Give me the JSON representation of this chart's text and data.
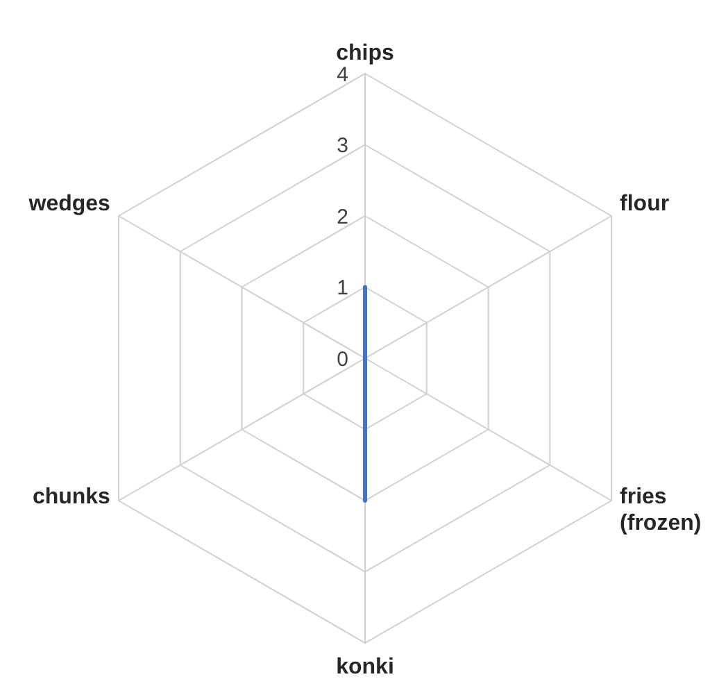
{
  "chart_data": {
    "type": "radar",
    "categories": [
      "chips",
      "flour",
      "fries (frozen)",
      "konki",
      "chunks",
      "wedges"
    ],
    "series": [
      {
        "color": "#4472c4",
        "values": [
          1,
          0,
          0,
          2,
          0,
          0
        ]
      }
    ],
    "ylim": [
      0,
      4
    ],
    "yticks": [
      0,
      1,
      2,
      3,
      4
    ],
    "grid": true
  }
}
